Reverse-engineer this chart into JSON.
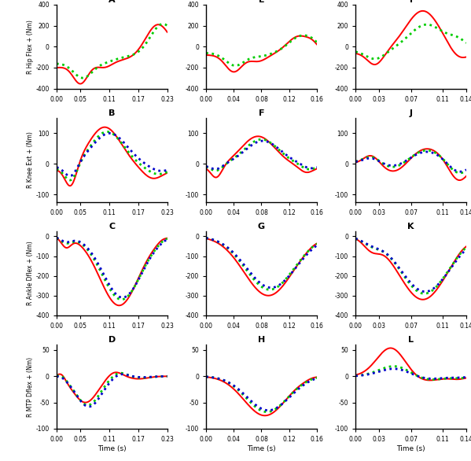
{
  "fig_width": 5.99,
  "fig_height": 5.86,
  "dpi": 100,
  "bg_color": "#ffffff",
  "line_colors": {
    "red": "#ff0000",
    "green": "#00cc00",
    "blue": "#0000cc"
  },
  "col_labels": [
    "A",
    "E",
    "I"
  ],
  "row_labels": [
    "B",
    "F",
    "J"
  ],
  "row_labels2": [
    "C",
    "G",
    "K"
  ],
  "row_labels3": [
    "D",
    "H",
    "L"
  ],
  "ylabel_row0": "R Hip Flex + (Nm)",
  "ylabel_row1": "R Knee Ext + (Nm)",
  "ylabel_row2": "R Ankle Dflex + (Nm)",
  "ylabel_row3": "R MTP Dflex + (Nm)",
  "ylim_row0": [
    -400,
    400
  ],
  "ylim_row1": [
    -125,
    150
  ],
  "ylim_row2": [
    -400,
    25
  ],
  "ylim_row3": [
    -100,
    60
  ],
  "yticks_row0": [
    -400,
    -200,
    0,
    200,
    400
  ],
  "yticks_row1": [
    -100,
    0,
    100
  ],
  "yticks_row2": [
    -400,
    -300,
    -200,
    -100,
    0
  ],
  "yticks_row3": [
    -100,
    -50,
    0,
    50
  ],
  "xlim_col0": [
    0,
    0.23
  ],
  "xlim_col1": [
    0,
    0.16
  ],
  "xlim_col2": [
    0,
    0.14
  ],
  "xticks_col0": [
    0.0,
    0.05,
    0.11,
    0.17,
    0.23
  ],
  "xticks_col1": [
    0.0,
    0.04,
    0.08,
    0.12,
    0.16
  ],
  "xticks_col2": [
    0.0,
    0.03,
    0.07,
    0.11,
    0.14
  ],
  "xlabel": "Time (s)"
}
